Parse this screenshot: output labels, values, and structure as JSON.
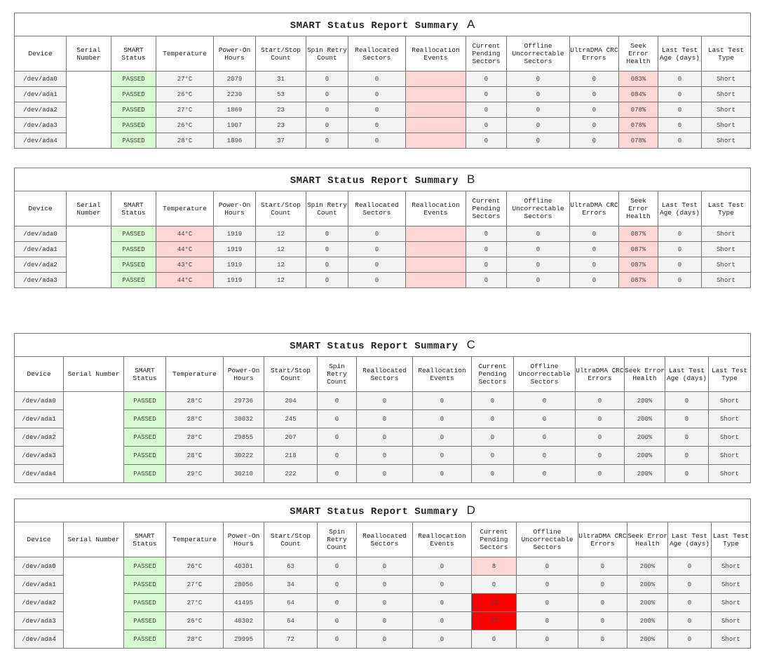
{
  "title": "SMART Status Report Summary",
  "headers": [
    "Device",
    "Serial Number",
    "SMART Status",
    "Temperature",
    "Power-On Hours",
    "Start/Stop Count",
    "Spin Retry Count",
    "Reallocated Sectors",
    "Reallocation Events",
    "Current Pending Sectors",
    "Offline Uncorrectable Sectors",
    "UltraDMA CRC Errors",
    "Seek Error Health",
    "Last Test Age (days)",
    "Last Test Type"
  ],
  "colors": {
    "passed": "#d8f8d2",
    "warning": "#ffd6d6",
    "critical": "#ff0000"
  },
  "reports": [
    {
      "label": "A",
      "rows": [
        {
          "device": "/dev/ada0",
          "serial": "",
          "status": "PASSED",
          "temp": "27°C",
          "hours": "2079",
          "startstop": "31",
          "spin": "0",
          "realloc": "0",
          "events": "",
          "pending": "0",
          "offline": "0",
          "crc": "0",
          "seek": "083%",
          "age": "0",
          "type": "Short"
        },
        {
          "device": "/dev/ada1",
          "serial": "",
          "status": "PASSED",
          "temp": "26°C",
          "hours": "2230",
          "startstop": "53",
          "spin": "0",
          "realloc": "0",
          "events": "",
          "pending": "0",
          "offline": "0",
          "crc": "0",
          "seek": "084%",
          "age": "0",
          "type": "Short"
        },
        {
          "device": "/dev/ada2",
          "serial": "",
          "status": "PASSED",
          "temp": "27°C",
          "hours": "1869",
          "startstop": "23",
          "spin": "0",
          "realloc": "0",
          "events": "",
          "pending": "0",
          "offline": "0",
          "crc": "0",
          "seek": "078%",
          "age": "0",
          "type": "Short"
        },
        {
          "device": "/dev/ada3",
          "serial": "",
          "status": "PASSED",
          "temp": "26°C",
          "hours": "1907",
          "startstop": "23",
          "spin": "0",
          "realloc": "0",
          "events": "",
          "pending": "0",
          "offline": "0",
          "crc": "0",
          "seek": "078%",
          "age": "0",
          "type": "Short"
        },
        {
          "device": "/dev/ada4",
          "serial": "",
          "status": "PASSED",
          "temp": "28°C",
          "hours": "1896",
          "startstop": "37",
          "spin": "0",
          "realloc": "0",
          "events": "",
          "pending": "0",
          "offline": "0",
          "crc": "0",
          "seek": "078%",
          "age": "0",
          "type": "Short"
        }
      ]
    },
    {
      "label": "B",
      "rows": [
        {
          "device": "/dev/ada0",
          "serial": "",
          "status": "PASSED",
          "temp": "44°C",
          "hours": "1919",
          "startstop": "12",
          "spin": "0",
          "realloc": "0",
          "events": "",
          "pending": "0",
          "offline": "0",
          "crc": "0",
          "seek": "087%",
          "age": "0",
          "type": "Short"
        },
        {
          "device": "/dev/ada1",
          "serial": "",
          "status": "PASSED",
          "temp": "44°C",
          "hours": "1919",
          "startstop": "12",
          "spin": "0",
          "realloc": "0",
          "events": "",
          "pending": "0",
          "offline": "0",
          "crc": "0",
          "seek": "087%",
          "age": "0",
          "type": "Short"
        },
        {
          "device": "/dev/ada2",
          "serial": "",
          "status": "PASSED",
          "temp": "43°C",
          "hours": "1919",
          "startstop": "12",
          "spin": "0",
          "realloc": "0",
          "events": "",
          "pending": "0",
          "offline": "0",
          "crc": "0",
          "seek": "087%",
          "age": "0",
          "type": "Short"
        },
        {
          "device": "/dev/ada3",
          "serial": "",
          "status": "PASSED",
          "temp": "44°C",
          "hours": "1919",
          "startstop": "12",
          "spin": "0",
          "realloc": "0",
          "events": "",
          "pending": "0",
          "offline": "0",
          "crc": "0",
          "seek": "087%",
          "age": "0",
          "type": "Short"
        }
      ]
    },
    {
      "label": "C",
      "rows": [
        {
          "device": "/dev/ada0",
          "serial": "",
          "status": "PASSED",
          "temp": "28°C",
          "hours": "29736",
          "startstop": "204",
          "spin": "0",
          "realloc": "0",
          "events": "0",
          "pending": "0",
          "offline": "0",
          "crc": "0",
          "seek": "200%",
          "age": "0",
          "type": "Short"
        },
        {
          "device": "/dev/ada1",
          "serial": "",
          "status": "PASSED",
          "temp": "28°C",
          "hours": "30032",
          "startstop": "245",
          "spin": "0",
          "realloc": "0",
          "events": "0",
          "pending": "0",
          "offline": "0",
          "crc": "0",
          "seek": "200%",
          "age": "0",
          "type": "Short"
        },
        {
          "device": "/dev/ada2",
          "serial": "",
          "status": "PASSED",
          "temp": "28°C",
          "hours": "29855",
          "startstop": "207",
          "spin": "0",
          "realloc": "0",
          "events": "0",
          "pending": "0",
          "offline": "0",
          "crc": "0",
          "seek": "200%",
          "age": "0",
          "type": "Short"
        },
        {
          "device": "/dev/ada3",
          "serial": "",
          "status": "PASSED",
          "temp": "28°C",
          "hours": "30222",
          "startstop": "218",
          "spin": "0",
          "realloc": "0",
          "events": "0",
          "pending": "0",
          "offline": "0",
          "crc": "0",
          "seek": "200%",
          "age": "0",
          "type": "Short"
        },
        {
          "device": "/dev/ada4",
          "serial": "",
          "status": "PASSED",
          "temp": "29°C",
          "hours": "30210",
          "startstop": "222",
          "spin": "0",
          "realloc": "0",
          "events": "0",
          "pending": "0",
          "offline": "0",
          "crc": "0",
          "seek": "200%",
          "age": "0",
          "type": "Short"
        }
      ]
    },
    {
      "label": "D",
      "rows": [
        {
          "device": "/dev/ada0",
          "serial": "",
          "status": "PASSED",
          "temp": "26°C",
          "hours": "40301",
          "startstop": "63",
          "spin": "0",
          "realloc": "0",
          "events": "0",
          "pending": "8",
          "offline": "0",
          "crc": "0",
          "seek": "200%",
          "age": "0",
          "type": "Short"
        },
        {
          "device": "/dev/ada1",
          "serial": "",
          "status": "PASSED",
          "temp": "27°C",
          "hours": "28056",
          "startstop": "34",
          "spin": "0",
          "realloc": "0",
          "events": "0",
          "pending": "0",
          "offline": "0",
          "crc": "0",
          "seek": "200%",
          "age": "0",
          "type": "Short"
        },
        {
          "device": "/dev/ada2",
          "serial": "",
          "status": "PASSED",
          "temp": "27°C",
          "hours": "41495",
          "startstop": "64",
          "spin": "0",
          "realloc": "0",
          "events": "0",
          "pending": "13",
          "offline": "0",
          "crc": "0",
          "seek": "200%",
          "age": "0",
          "type": "Short"
        },
        {
          "device": "/dev/ada3",
          "serial": "",
          "status": "PASSED",
          "temp": "26°C",
          "hours": "40302",
          "startstop": "64",
          "spin": "0",
          "realloc": "0",
          "events": "0",
          "pending": "12",
          "offline": "0",
          "crc": "0",
          "seek": "200%",
          "age": "0",
          "type": "Short"
        },
        {
          "device": "/dev/ada4",
          "serial": "",
          "status": "PASSED",
          "temp": "28°C",
          "hours": "29995",
          "startstop": "72",
          "spin": "0",
          "realloc": "0",
          "events": "0",
          "pending": "0",
          "offline": "0",
          "crc": "0",
          "seek": "200%",
          "age": "0",
          "type": "Short"
        }
      ]
    }
  ]
}
